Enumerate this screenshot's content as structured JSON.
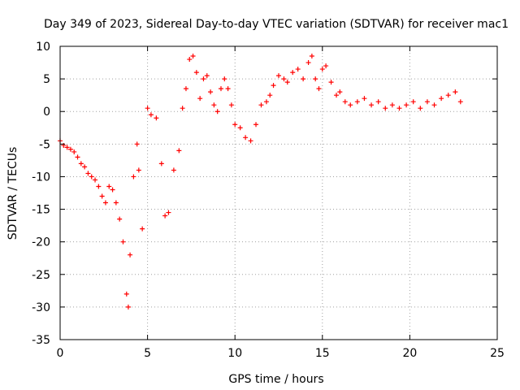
{
  "chart_data": {
    "type": "scatter",
    "title": "Day 349 of 2023, Sidereal Day-to-day VTEC variation (SDTVAR) for receiver mac1",
    "xlabel": "GPS time / hours",
    "ylabel": "SDTVAR / TECUs",
    "xlim": [
      0,
      25
    ],
    "ylim": [
      -35,
      10
    ],
    "xticks": [
      0,
      5,
      10,
      15,
      20,
      25
    ],
    "yticks": [
      -35,
      -30,
      -25,
      -20,
      -15,
      -10,
      -5,
      0,
      5,
      10
    ],
    "grid": true,
    "marker": "+",
    "color": "#ff0000",
    "series": [
      {
        "name": "SDTVAR",
        "x": [
          0.0,
          0.2,
          0.4,
          0.6,
          0.8,
          1.0,
          1.2,
          1.4,
          1.6,
          1.8,
          2.0,
          2.2,
          2.4,
          2.6,
          2.8,
          3.0,
          3.2,
          3.4,
          3.6,
          3.8,
          3.9,
          4.0,
          4.2,
          4.4,
          4.5,
          4.7,
          5.0,
          5.2,
          5.5,
          5.8,
          6.0,
          6.2,
          6.5,
          6.8,
          7.0,
          7.2,
          7.4,
          7.6,
          7.8,
          8.0,
          8.2,
          8.4,
          8.6,
          8.8,
          9.0,
          9.2,
          9.4,
          9.6,
          9.8,
          10.0,
          10.3,
          10.6,
          10.9,
          11.2,
          11.5,
          11.8,
          12.0,
          12.2,
          12.5,
          12.8,
          13.0,
          13.3,
          13.6,
          13.9,
          14.2,
          14.4,
          14.6,
          14.8,
          15.0,
          15.2,
          15.5,
          15.8,
          16.0,
          16.3,
          16.6,
          17.0,
          17.4,
          17.8,
          18.2,
          18.6,
          19.0,
          19.4,
          19.8,
          20.2,
          20.6,
          21.0,
          21.4,
          21.8,
          22.2,
          22.6,
          22.9
        ],
        "y": [
          -4.5,
          -5.2,
          -5.5,
          -5.8,
          -6.2,
          -7.0,
          -8.0,
          -8.5,
          -9.5,
          -10.0,
          -10.5,
          -11.5,
          -13.0,
          -14.0,
          -11.5,
          -12.0,
          -14.0,
          -16.5,
          -20.0,
          -28.0,
          -30.0,
          -22.0,
          -10.0,
          -5.0,
          -9.0,
          -18.0,
          0.5,
          -0.5,
          -1.0,
          -8.0,
          -16.0,
          -15.5,
          -9.0,
          -6.0,
          0.5,
          3.5,
          8.0,
          8.5,
          6.0,
          2.0,
          5.0,
          5.5,
          3.0,
          1.0,
          0.0,
          3.5,
          5.0,
          3.5,
          1.0,
          -2.0,
          -2.5,
          -4.0,
          -4.5,
          -2.0,
          1.0,
          1.5,
          2.5,
          4.0,
          5.5,
          5.0,
          4.5,
          6.0,
          6.5,
          5.0,
          7.5,
          8.5,
          5.0,
          3.5,
          6.5,
          7.0,
          4.5,
          2.5,
          3.0,
          1.5,
          1.0,
          1.5,
          2.0,
          1.0,
          1.5,
          0.5,
          1.0,
          0.5,
          1.0,
          1.5,
          0.5,
          1.5,
          1.0,
          2.0,
          2.5,
          3.0,
          1.5
        ]
      }
    ]
  }
}
